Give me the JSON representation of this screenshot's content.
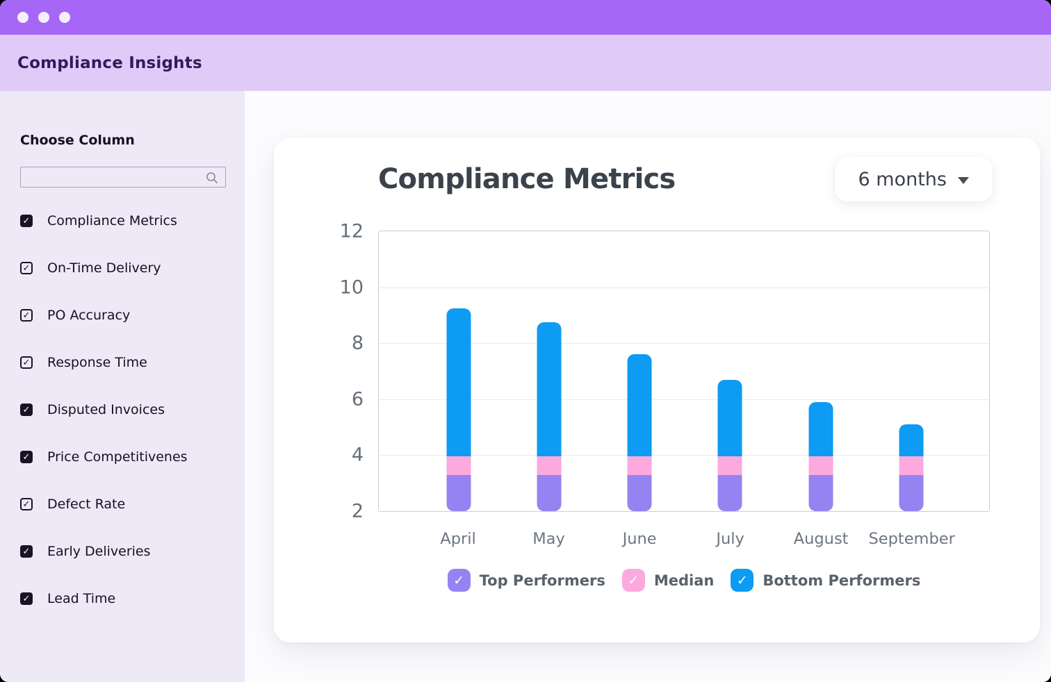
{
  "header": {
    "title": "Compliance Insights"
  },
  "sidebar": {
    "heading": "Choose Column",
    "search_value": "",
    "items": [
      {
        "label": "Compliance Metrics",
        "checked": true,
        "variant": "filled"
      },
      {
        "label": "On-Time Delivery",
        "checked": true,
        "variant": "outlined"
      },
      {
        "label": "PO Accuracy",
        "checked": true,
        "variant": "outlined"
      },
      {
        "label": "Response Time",
        "checked": true,
        "variant": "outlined"
      },
      {
        "label": "Disputed Invoices",
        "checked": true,
        "variant": "filled"
      },
      {
        "label": "Price Competitivenes",
        "checked": true,
        "variant": "filled"
      },
      {
        "label": "Defect Rate",
        "checked": true,
        "variant": "outlined"
      },
      {
        "label": "Early Deliveries",
        "checked": true,
        "variant": "filled"
      },
      {
        "label": "Lead Time",
        "checked": true,
        "variant": "filled"
      }
    ]
  },
  "main": {
    "card": {
      "title": "Compliance Metrics",
      "range_selector": {
        "label": "6 months"
      }
    }
  },
  "icons": {
    "check": "✓",
    "search": "magnifier",
    "chevron": "chevron-down"
  },
  "colors": {
    "titlebar": "#A767F6",
    "header_bg": "#E0CBF8",
    "header_text": "#331A5B",
    "sidebar_bg": "#EDE9F6",
    "blue": "#0D9BF3",
    "pink": "#FCA9DE",
    "purple": "#9583F2"
  },
  "chart_data": {
    "type": "bar",
    "subtype": "stacked-bar",
    "title": "Compliance Metrics",
    "period": "6 months",
    "categories": [
      "April",
      "May",
      "June",
      "July",
      "August",
      "September"
    ],
    "baseline": 2,
    "ylim": [
      2,
      12
    ],
    "y_ticks": [
      2,
      4,
      6,
      8,
      10,
      12
    ],
    "grid": true,
    "legend_position": "bottom",
    "stack_order": "bottom-to-top",
    "bar_totals": [
      9.25,
      8.75,
      7.6,
      6.7,
      5.9,
      5.1
    ],
    "series": [
      {
        "name": "Top Performers",
        "color": "#9583F2",
        "values": [
          1.3,
          1.3,
          1.3,
          1.3,
          1.3,
          1.3
        ]
      },
      {
        "name": "Median",
        "color": "#FCA9DE",
        "values": [
          0.65,
          0.65,
          0.65,
          0.65,
          0.65,
          0.65
        ]
      },
      {
        "name": "Bottom Performers",
        "color": "#0D9BF3",
        "values": [
          5.3,
          4.8,
          3.65,
          2.75,
          1.95,
          1.15
        ]
      }
    ]
  }
}
